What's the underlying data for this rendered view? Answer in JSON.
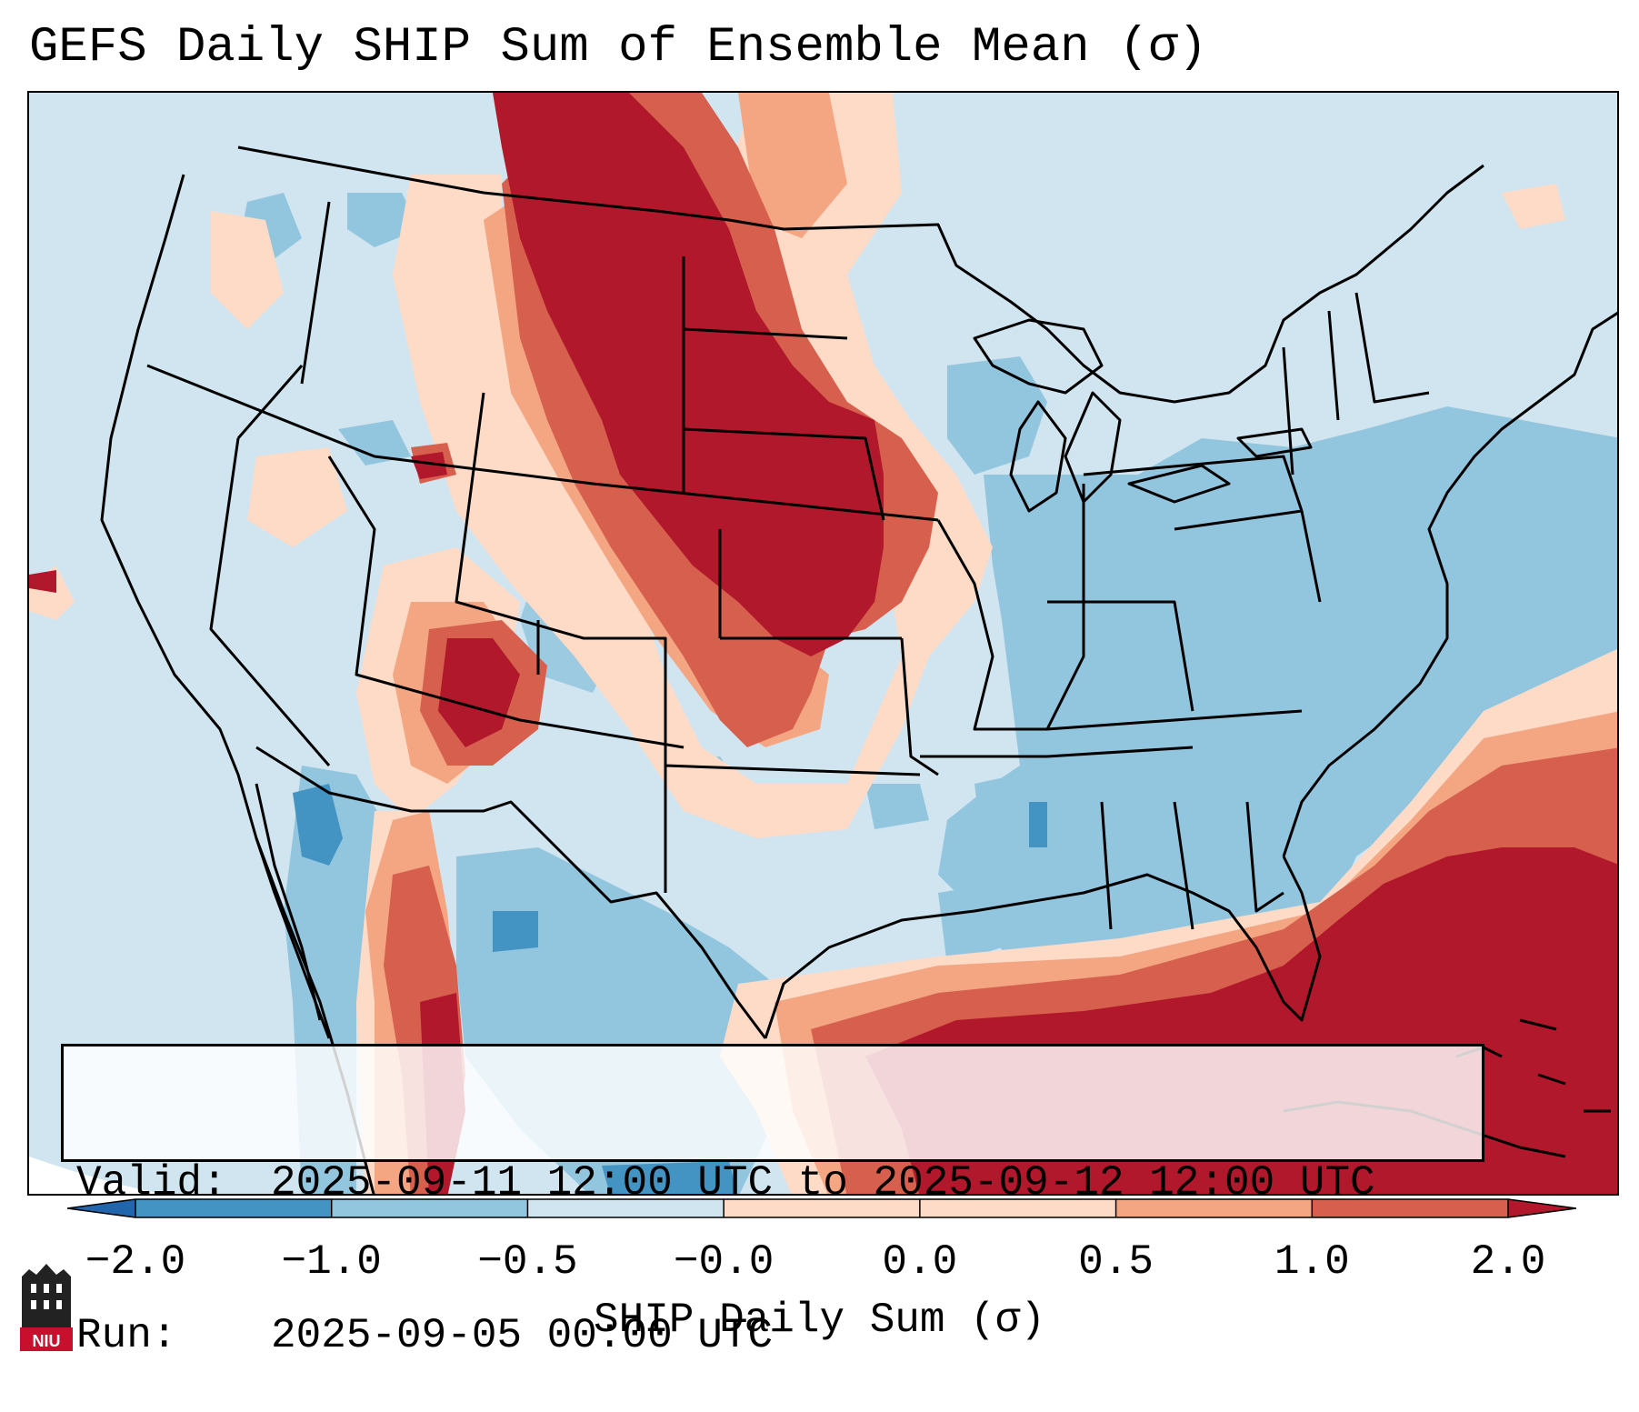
{
  "title": "GEFS Daily SHIP Sum of Ensemble Mean (σ)",
  "info": {
    "valid_label": "Valid:",
    "valid_value": "2025-09-11 12:00 UTC to 2025-09-12 12:00 UTC",
    "run_label": "Run:",
    "run_value": "2025-09-05 00:00 UTC"
  },
  "colorbar": {
    "label": "SHIP Daily Sum (σ)",
    "ticks": [
      "−2.0",
      "−1.0",
      "−0.5",
      "−0.0",
      "0.0",
      "0.5",
      "1.0",
      "2.0"
    ],
    "colors": [
      "#2166ac",
      "#4393c3",
      "#92c5de",
      "#d1e5f0",
      "#fddbc7",
      "#f4a582",
      "#d6604d",
      "#b2182b"
    ],
    "extend": "both"
  },
  "logo": {
    "text": "NIU",
    "colors": {
      "shield": "#c8102e",
      "tower": "#222222"
    }
  }
}
